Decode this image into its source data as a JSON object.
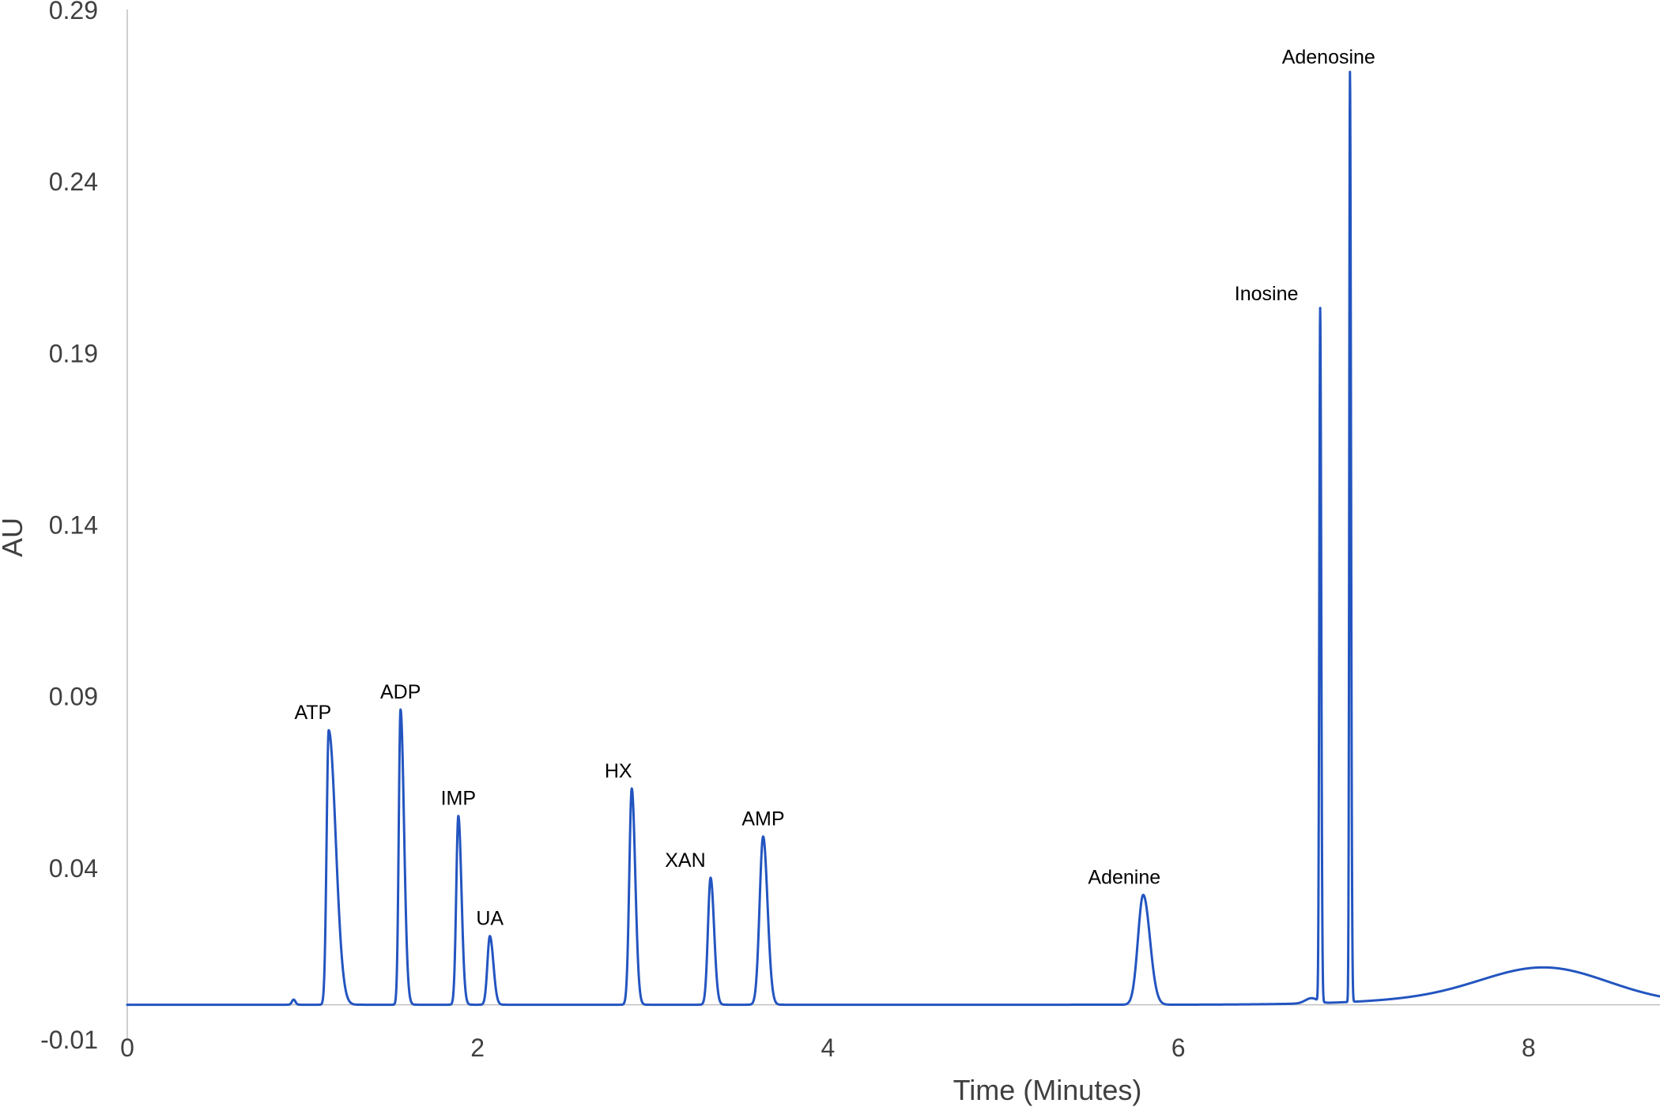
{
  "colors": {
    "trace": "#2355c0",
    "axis": "#bfbfbf",
    "tick_text": "#404040",
    "label_text": "#000000"
  },
  "chart_data": {
    "type": "line",
    "title": "",
    "xlabel": "Time (Minutes)",
    "ylabel": "AU",
    "xlim": [
      0,
      8.75
    ],
    "ylim": [
      -0.01,
      0.29
    ],
    "x_ticks": [
      0,
      2,
      4,
      6,
      8
    ],
    "x_tick_labels": [
      "0",
      "2",
      "4",
      "6",
      "8"
    ],
    "y_ticks": [
      -0.01,
      0.04,
      0.09,
      0.14,
      0.19,
      0.24,
      0.29
    ],
    "y_tick_labels": [
      "-0.01",
      "0.04",
      "0.09",
      "0.14",
      "0.19",
      "0.24",
      "0.29"
    ],
    "grid": false,
    "legend": "none",
    "baseline": 0.0,
    "peaks": [
      {
        "name": "ATP",
        "rt": 1.15,
        "height": 0.08,
        "rise": 0.012,
        "tail": 0.04
      },
      {
        "name": "ADP",
        "rt": 1.56,
        "height": 0.086,
        "rise": 0.01,
        "tail": 0.02
      },
      {
        "name": "IMP",
        "rt": 1.89,
        "height": 0.055,
        "rise": 0.012,
        "tail": 0.018
      },
      {
        "name": "UA",
        "rt": 2.07,
        "height": 0.02,
        "rise": 0.014,
        "tail": 0.02
      },
      {
        "name": "HX",
        "rt": 2.88,
        "height": 0.063,
        "rise": 0.014,
        "tail": 0.02
      },
      {
        "name": "XAN",
        "rt": 3.33,
        "height": 0.037,
        "rise": 0.015,
        "tail": 0.02
      },
      {
        "name": "AMP",
        "rt": 3.63,
        "height": 0.049,
        "rise": 0.02,
        "tail": 0.025
      },
      {
        "name": "Adenine",
        "rt": 5.8,
        "height": 0.032,
        "rise": 0.03,
        "tail": 0.038
      },
      {
        "name": "Inosine",
        "rt": 6.81,
        "height": 0.202,
        "rise": 0.005,
        "tail": 0.006
      },
      {
        "name": "Adenosine",
        "rt": 6.98,
        "height": 0.271,
        "rise": 0.004,
        "tail": 0.006
      }
    ],
    "minor_features": [
      {
        "rt": 0.95,
        "height": 0.0015,
        "width": 0.01
      },
      {
        "rt": 6.76,
        "height": 0.0015,
        "width": 0.035
      },
      {
        "rt": 8.1,
        "height": 0.0085,
        "width": 0.35
      },
      {
        "rt": 7.9,
        "height": 0.0025,
        "width": 0.6
      }
    ]
  }
}
